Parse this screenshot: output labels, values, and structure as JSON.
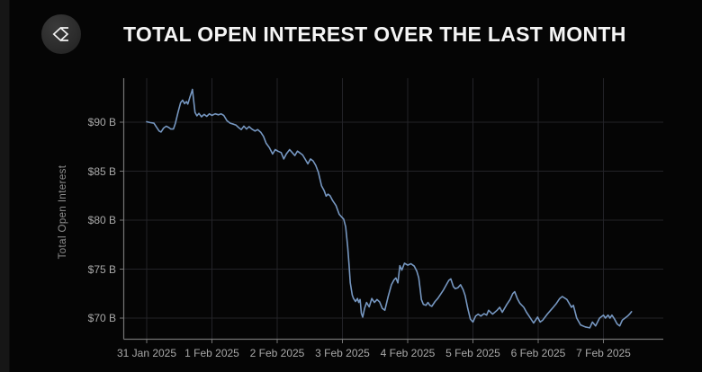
{
  "header": {
    "title": "TOTAL OPEN INTEREST OVER THE LAST MONTH",
    "logo_icon": "sigma-diamond-logo"
  },
  "colors": {
    "background": "#050505",
    "line": "#7697c1",
    "grid": "#232328",
    "axis": "#757575",
    "tick_label": "#a8a8a8",
    "axis_title": "#8f8f8f",
    "title_text": "#f5f5f5",
    "logo_bg": "#2b2b2b"
  },
  "chart_data": {
    "type": "line",
    "title": "TOTAL OPEN INTEREST OVER THE LAST MONTH",
    "xlabel": "",
    "ylabel": "Total Open Interest",
    "grid": true,
    "legend_position": "none",
    "ylim": [
      68.1,
      94.5
    ],
    "xlim_days": [
      -0.35,
      7.92
    ],
    "y_ticks": [
      {
        "label": "$90 B",
        "value": 90
      },
      {
        "label": "$85 B",
        "value": 85
      },
      {
        "label": "$80 B",
        "value": 80
      },
      {
        "label": "$75 B",
        "value": 75
      },
      {
        "label": "$70 B",
        "value": 70
      }
    ],
    "x_ticks": [
      {
        "label": "31 Jan 2025",
        "day": 0
      },
      {
        "label": "1 Feb 2025",
        "day": 1
      },
      {
        "label": "2 Feb 2025",
        "day": 2
      },
      {
        "label": "3 Feb 2025",
        "day": 3
      },
      {
        "label": "4 Feb 2025",
        "day": 4
      },
      {
        "label": "5 Feb 2025",
        "day": 5
      },
      {
        "label": "6 Feb 2025",
        "day": 6
      },
      {
        "label": "7 Feb 2025",
        "day": 7
      }
    ],
    "series": [
      {
        "name": "Total Open Interest",
        "unit": "$B",
        "x_unit": "days since 31 Jan 2025",
        "points": [
          [
            0.0,
            90.05
          ],
          [
            0.06,
            89.95
          ],
          [
            0.11,
            89.9
          ],
          [
            0.14,
            89.6
          ],
          [
            0.19,
            89.1
          ],
          [
            0.22,
            89.0
          ],
          [
            0.26,
            89.4
          ],
          [
            0.3,
            89.6
          ],
          [
            0.34,
            89.45
          ],
          [
            0.37,
            89.3
          ],
          [
            0.41,
            89.3
          ],
          [
            0.44,
            89.9
          ],
          [
            0.48,
            91.0
          ],
          [
            0.52,
            92.0
          ],
          [
            0.55,
            92.25
          ],
          [
            0.58,
            91.9
          ],
          [
            0.61,
            92.1
          ],
          [
            0.63,
            91.85
          ],
          [
            0.66,
            92.5
          ],
          [
            0.69,
            93.1
          ],
          [
            0.7,
            93.35
          ],
          [
            0.72,
            92.2
          ],
          [
            0.74,
            91.0
          ],
          [
            0.77,
            90.65
          ],
          [
            0.8,
            90.9
          ],
          [
            0.84,
            90.55
          ],
          [
            0.88,
            90.8
          ],
          [
            0.92,
            90.6
          ],
          [
            0.96,
            90.85
          ],
          [
            1.0,
            90.7
          ],
          [
            1.05,
            90.85
          ],
          [
            1.1,
            90.75
          ],
          [
            1.14,
            90.85
          ],
          [
            1.18,
            90.7
          ],
          [
            1.23,
            90.15
          ],
          [
            1.28,
            89.9
          ],
          [
            1.33,
            89.8
          ],
          [
            1.37,
            89.7
          ],
          [
            1.41,
            89.45
          ],
          [
            1.45,
            89.25
          ],
          [
            1.49,
            89.6
          ],
          [
            1.53,
            89.3
          ],
          [
            1.57,
            89.55
          ],
          [
            1.61,
            89.3
          ],
          [
            1.66,
            89.1
          ],
          [
            1.7,
            89.25
          ],
          [
            1.75,
            88.95
          ],
          [
            1.79,
            88.55
          ],
          [
            1.83,
            87.85
          ],
          [
            1.88,
            87.4
          ],
          [
            1.93,
            86.75
          ],
          [
            1.97,
            87.2
          ],
          [
            2.01,
            87.05
          ],
          [
            2.06,
            86.9
          ],
          [
            2.1,
            86.25
          ],
          [
            2.14,
            86.75
          ],
          [
            2.19,
            87.2
          ],
          [
            2.23,
            86.9
          ],
          [
            2.27,
            86.6
          ],
          [
            2.31,
            87.05
          ],
          [
            2.35,
            86.85
          ],
          [
            2.39,
            86.65
          ],
          [
            2.43,
            86.2
          ],
          [
            2.47,
            85.75
          ],
          [
            2.51,
            86.25
          ],
          [
            2.55,
            86.05
          ],
          [
            2.59,
            85.6
          ],
          [
            2.63,
            84.9
          ],
          [
            2.68,
            83.5
          ],
          [
            2.72,
            83.0
          ],
          [
            2.75,
            82.45
          ],
          [
            2.78,
            82.65
          ],
          [
            2.81,
            82.5
          ],
          [
            2.85,
            82.0
          ],
          [
            2.9,
            81.5
          ],
          [
            2.95,
            80.6
          ],
          [
            2.99,
            80.3
          ],
          [
            3.02,
            80.1
          ],
          [
            3.05,
            79.3
          ],
          [
            3.08,
            77.3
          ],
          [
            3.1,
            75.5
          ],
          [
            3.12,
            73.6
          ],
          [
            3.15,
            72.35
          ],
          [
            3.17,
            72.0
          ],
          [
            3.2,
            71.7
          ],
          [
            3.23,
            72.0
          ],
          [
            3.25,
            71.6
          ],
          [
            3.27,
            71.9
          ],
          [
            3.29,
            70.5
          ],
          [
            3.31,
            70.1
          ],
          [
            3.34,
            71.0
          ],
          [
            3.37,
            71.6
          ],
          [
            3.41,
            71.15
          ],
          [
            3.45,
            72.0
          ],
          [
            3.49,
            71.6
          ],
          [
            3.53,
            71.9
          ],
          [
            3.57,
            71.65
          ],
          [
            3.61,
            71.0
          ],
          [
            3.65,
            70.8
          ],
          [
            3.7,
            72.2
          ],
          [
            3.75,
            73.4
          ],
          [
            3.79,
            73.9
          ],
          [
            3.82,
            74.1
          ],
          [
            3.85,
            73.6
          ],
          [
            3.88,
            75.35
          ],
          [
            3.91,
            74.9
          ],
          [
            3.95,
            75.6
          ],
          [
            4.0,
            75.4
          ],
          [
            4.05,
            75.55
          ],
          [
            4.1,
            75.3
          ],
          [
            4.14,
            74.8
          ],
          [
            4.17,
            74.1
          ],
          [
            4.19,
            73.0
          ],
          [
            4.21,
            71.9
          ],
          [
            4.24,
            71.4
          ],
          [
            4.28,
            71.3
          ],
          [
            4.31,
            71.6
          ],
          [
            4.34,
            71.3
          ],
          [
            4.37,
            71.2
          ],
          [
            4.42,
            71.7
          ],
          [
            4.46,
            72.0
          ],
          [
            4.51,
            72.5
          ],
          [
            4.55,
            72.9
          ],
          [
            4.6,
            73.5
          ],
          [
            4.63,
            73.85
          ],
          [
            4.66,
            74.0
          ],
          [
            4.7,
            73.2
          ],
          [
            4.73,
            73.0
          ],
          [
            4.77,
            73.1
          ],
          [
            4.81,
            73.4
          ],
          [
            4.85,
            72.9
          ],
          [
            4.88,
            72.3
          ],
          [
            4.92,
            71.0
          ],
          [
            4.96,
            69.9
          ],
          [
            5.0,
            69.6
          ],
          [
            5.04,
            70.2
          ],
          [
            5.08,
            70.4
          ],
          [
            5.12,
            70.2
          ],
          [
            5.17,
            70.45
          ],
          [
            5.21,
            70.3
          ],
          [
            5.24,
            70.8
          ],
          [
            5.3,
            70.4
          ],
          [
            5.37,
            70.8
          ],
          [
            5.41,
            71.1
          ],
          [
            5.45,
            70.6
          ],
          [
            5.52,
            71.4
          ],
          [
            5.57,
            71.9
          ],
          [
            5.61,
            72.5
          ],
          [
            5.64,
            72.7
          ],
          [
            5.68,
            72.0
          ],
          [
            5.72,
            71.5
          ],
          [
            5.78,
            71.1
          ],
          [
            5.82,
            70.6
          ],
          [
            5.86,
            70.2
          ],
          [
            5.93,
            69.5
          ],
          [
            5.99,
            70.1
          ],
          [
            6.03,
            69.6
          ],
          [
            6.07,
            69.8
          ],
          [
            6.14,
            70.4
          ],
          [
            6.19,
            70.8
          ],
          [
            6.23,
            71.1
          ],
          [
            6.28,
            71.5
          ],
          [
            6.33,
            72.0
          ],
          [
            6.37,
            72.2
          ],
          [
            6.44,
            71.9
          ],
          [
            6.51,
            71.1
          ],
          [
            6.54,
            71.3
          ],
          [
            6.59,
            70.0
          ],
          [
            6.65,
            69.3
          ],
          [
            6.72,
            69.1
          ],
          [
            6.79,
            69.0
          ],
          [
            6.83,
            69.6
          ],
          [
            6.88,
            69.2
          ],
          [
            6.94,
            70.0
          ],
          [
            7.0,
            70.3
          ],
          [
            7.03,
            70.0
          ],
          [
            7.07,
            70.3
          ],
          [
            7.1,
            70.0
          ],
          [
            7.13,
            70.3
          ],
          [
            7.17,
            69.9
          ],
          [
            7.21,
            69.4
          ],
          [
            7.25,
            69.2
          ],
          [
            7.29,
            69.8
          ],
          [
            7.33,
            70.0
          ],
          [
            7.37,
            70.2
          ],
          [
            7.4,
            70.4
          ],
          [
            7.43,
            70.65
          ]
        ]
      }
    ]
  }
}
